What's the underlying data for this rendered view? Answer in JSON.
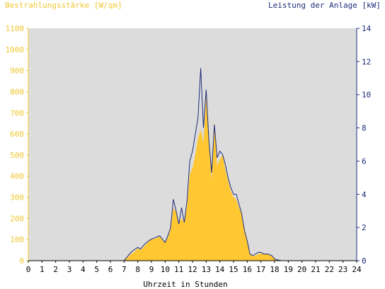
{
  "chart_data": {
    "type": "area",
    "title": "",
    "xlabel": "Uhrzeit in Stunden",
    "ylabel_left": "Bestrahlungsstärke [W/qm]",
    "ylabel_right": "Leistung der Anlage [kW]",
    "xlim": [
      0,
      24
    ],
    "ylim_left": [
      0,
      1100
    ],
    "ylim_right": [
      0,
      14
    ],
    "x_ticks": [
      0,
      1,
      2,
      3,
      4,
      5,
      6,
      7,
      8,
      9,
      10,
      11,
      12,
      13,
      14,
      15,
      16,
      17,
      18,
      19,
      20,
      21,
      22,
      23,
      24
    ],
    "y_left_ticks": [
      0,
      100,
      200,
      300,
      400,
      500,
      600,
      700,
      800,
      900,
      1000,
      1100
    ],
    "y_right_ticks": [
      0,
      2,
      4,
      6,
      8,
      10,
      12,
      14
    ],
    "grid": false,
    "colors": {
      "irradiance_fill": "#ffc832",
      "power_line": "#1f2d7a",
      "plot_background": "#dcdcdc",
      "left_axis_text": "#f0c832",
      "right_axis_text": "#1f2d7a"
    },
    "series": [
      {
        "axis": "left",
        "style": "area",
        "x": [
          0,
          7.0,
          7.2,
          7.5,
          7.8,
          8.0,
          8.2,
          8.5,
          8.8,
          9.0,
          9.3,
          9.6,
          9.9,
          10.0,
          10.2,
          10.4,
          10.6,
          10.8,
          11.0,
          11.2,
          11.4,
          11.6,
          11.8,
          12.0,
          12.2,
          12.4,
          12.6,
          12.8,
          13.0,
          13.2,
          13.4,
          13.6,
          13.8,
          14.0,
          14.2,
          14.4,
          14.6,
          14.8,
          15.0,
          15.2,
          15.4,
          15.6,
          15.8,
          16.0,
          16.2,
          16.4,
          16.6,
          16.8,
          17.0,
          17.2,
          17.5,
          17.8,
          18.0,
          18.2,
          18.5,
          18.8,
          19.0,
          24
        ],
        "y": [
          0,
          0,
          12,
          30,
          45,
          60,
          50,
          70,
          90,
          100,
          105,
          115,
          90,
          85,
          110,
          150,
          250,
          230,
          180,
          200,
          180,
          260,
          410,
          440,
          500,
          580,
          620,
          560,
          780,
          600,
          380,
          660,
          450,
          480,
          500,
          430,
          380,
          330,
          300,
          290,
          250,
          220,
          150,
          100,
          30,
          20,
          25,
          30,
          35,
          30,
          32,
          20,
          10,
          5,
          2,
          0,
          0,
          0
        ]
      },
      {
        "axis": "right",
        "style": "line",
        "x": [
          0,
          7.0,
          7.2,
          7.5,
          7.8,
          8.0,
          8.2,
          8.5,
          8.8,
          9.0,
          9.3,
          9.6,
          9.9,
          10.0,
          10.2,
          10.4,
          10.6,
          10.8,
          11.0,
          11.2,
          11.4,
          11.6,
          11.8,
          12.0,
          12.2,
          12.4,
          12.6,
          12.8,
          13.0,
          13.2,
          13.4,
          13.6,
          13.8,
          14.0,
          14.2,
          14.4,
          14.6,
          14.8,
          15.0,
          15.2,
          15.4,
          15.6,
          15.8,
          16.0,
          16.2,
          16.4,
          16.6,
          16.8,
          17.0,
          17.2,
          17.5,
          17.8,
          18.0,
          18.2,
          18.5,
          18.8,
          19.0,
          24
        ],
        "y": [
          0,
          0,
          0.2,
          0.5,
          0.7,
          0.8,
          0.7,
          1.0,
          1.2,
          1.3,
          1.4,
          1.5,
          1.2,
          1.1,
          1.5,
          2.0,
          3.7,
          3.0,
          2.2,
          3.2,
          2.3,
          3.6,
          6.0,
          6.6,
          7.6,
          8.6,
          11.6,
          8.0,
          10.3,
          7.2,
          5.3,
          8.2,
          6.2,
          6.6,
          6.4,
          5.8,
          5.0,
          4.4,
          4.0,
          4.0,
          3.4,
          2.8,
          1.8,
          1.2,
          0.4,
          0.3,
          0.4,
          0.5,
          0.5,
          0.4,
          0.4,
          0.3,
          0.1,
          0.05,
          0,
          0,
          0,
          0
        ]
      }
    ]
  }
}
